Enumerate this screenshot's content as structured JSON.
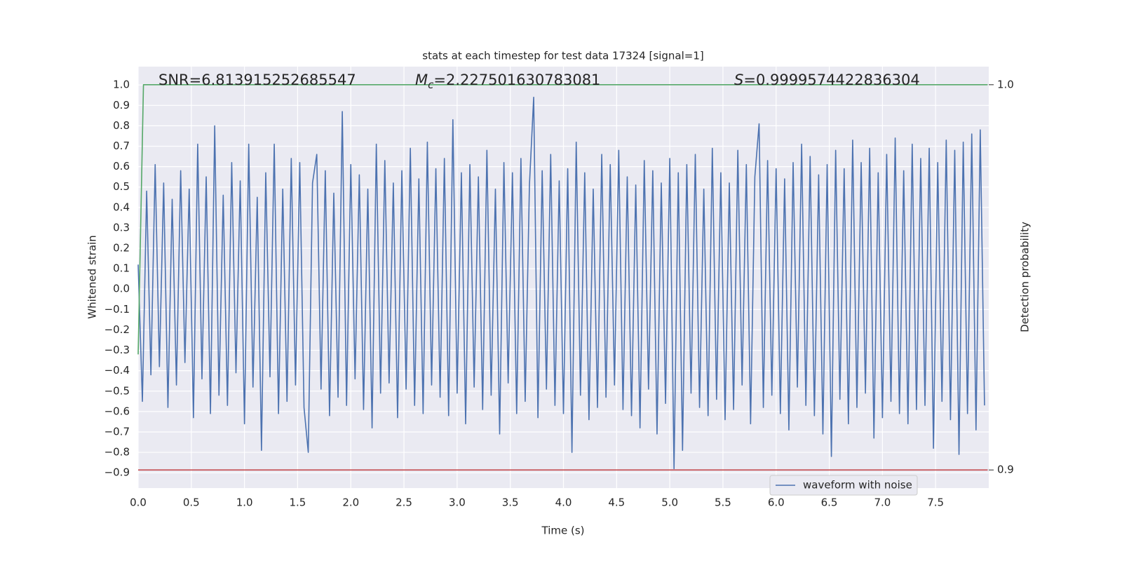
{
  "chart_data": {
    "type": "line",
    "title": "stats at each timestep for test data 17324 [signal=1]",
    "xlabel": "Time (s)",
    "ylabel": "Whitened strain",
    "y2label": "Detection probability",
    "annotations": [
      {
        "symbol": "SNR",
        "text": "=6.813915252685547"
      },
      {
        "symbol": "M",
        "subscript": "c",
        "text": "=2.227501630783081"
      },
      {
        "symbol": "S",
        "text": "=0.9999574422836304"
      }
    ],
    "xlim": [
      0,
      8.0
    ],
    "ylim": [
      -0.975,
      1.09
    ],
    "y2lim": [
      0.8953,
      1.0047
    ],
    "xticks": [
      {
        "value": 0,
        "label": "0.0"
      },
      {
        "value": 0.5,
        "label": "0.5"
      },
      {
        "value": 1,
        "label": "1.0"
      },
      {
        "value": 1.5,
        "label": "1.5"
      },
      {
        "value": 2,
        "label": "2.0"
      },
      {
        "value": 2.5,
        "label": "2.5"
      },
      {
        "value": 3,
        "label": "3.0"
      },
      {
        "value": 3.5,
        "label": "3.5"
      },
      {
        "value": 4,
        "label": "4.0"
      },
      {
        "value": 4.5,
        "label": "4.5"
      },
      {
        "value": 5,
        "label": "5.0"
      },
      {
        "value": 5.5,
        "label": "5.5"
      },
      {
        "value": 6,
        "label": "6.0"
      },
      {
        "value": 6.5,
        "label": "6.5"
      },
      {
        "value": 7,
        "label": "7.0"
      },
      {
        "value": 7.5,
        "label": "7.5"
      }
    ],
    "yticks": [
      {
        "value": -0.9,
        "label": "−0.9"
      },
      {
        "value": -0.8,
        "label": "−0.8"
      },
      {
        "value": -0.7,
        "label": "−0.7"
      },
      {
        "value": -0.6,
        "label": "−0.6"
      },
      {
        "value": -0.5,
        "label": "−0.5"
      },
      {
        "value": -0.4,
        "label": "−0.4"
      },
      {
        "value": -0.3,
        "label": "−0.3"
      },
      {
        "value": -0.2,
        "label": "−0.2"
      },
      {
        "value": -0.1,
        "label": "−0.1"
      },
      {
        "value": 0,
        "label": "0.0"
      },
      {
        "value": 0.1,
        "label": "0.1"
      },
      {
        "value": 0.2,
        "label": "0.2"
      },
      {
        "value": 0.3,
        "label": "0.3"
      },
      {
        "value": 0.4,
        "label": "0.4"
      },
      {
        "value": 0.5,
        "label": "0.5"
      },
      {
        "value": 0.6,
        "label": "0.6"
      },
      {
        "value": 0.7,
        "label": "0.7"
      },
      {
        "value": 0.8,
        "label": "0.8"
      },
      {
        "value": 0.9,
        "label": "0.9"
      },
      {
        "value": 1,
        "label": "1.0"
      }
    ],
    "y2ticks": [
      {
        "value": 0.9,
        "label": "0.9"
      },
      {
        "value": 1,
        "label": "1.0"
      }
    ],
    "grid": true,
    "legend": "lower right",
    "series": [
      {
        "name": "waveform with noise",
        "color": "#4c72b0",
        "axis": "y",
        "x": [
          0,
          0.04,
          0.08,
          0.12,
          0.16,
          0.2,
          0.24,
          0.28,
          0.32,
          0.36,
          0.4,
          0.44,
          0.48,
          0.52,
          0.56,
          0.6,
          0.64,
          0.68,
          0.72,
          0.76,
          0.8,
          0.84,
          0.88,
          0.92,
          0.96,
          1,
          1.04,
          1.08,
          1.12,
          1.16,
          1.2,
          1.24,
          1.28,
          1.32,
          1.36,
          1.4,
          1.44,
          1.48,
          1.52,
          1.56,
          1.6,
          1.64,
          1.68,
          1.72,
          1.76,
          1.8,
          1.84,
          1.88,
          1.92,
          1.96,
          2,
          2.04,
          2.08,
          2.12,
          2.16,
          2.2,
          2.24,
          2.28,
          2.32,
          2.36,
          2.4,
          2.44,
          2.48,
          2.52,
          2.56,
          2.6,
          2.64,
          2.68,
          2.72,
          2.76,
          2.8,
          2.84,
          2.88,
          2.92,
          2.96,
          3,
          3.04,
          3.08,
          3.12,
          3.16,
          3.2,
          3.24,
          3.28,
          3.32,
          3.36,
          3.4,
          3.44,
          3.48,
          3.52,
          3.56,
          3.6,
          3.64,
          3.68,
          3.72,
          3.76,
          3.8,
          3.84,
          3.88,
          3.92,
          3.96,
          4,
          4.04,
          4.08,
          4.12,
          4.16,
          4.2,
          4.24,
          4.28,
          4.32,
          4.36,
          4.4,
          4.44,
          4.48,
          4.52,
          4.56,
          4.6,
          4.64,
          4.68,
          4.72,
          4.76,
          4.8,
          4.84,
          4.88,
          4.92,
          4.96,
          5,
          5.04,
          5.08,
          5.12,
          5.16,
          5.2,
          5.24,
          5.28,
          5.32,
          5.36,
          5.4,
          5.44,
          5.48,
          5.52,
          5.56,
          5.6,
          5.64,
          5.68,
          5.72,
          5.76,
          5.8,
          5.84,
          5.88,
          5.92,
          5.96,
          6,
          6.04,
          6.08,
          6.12,
          6.16,
          6.2,
          6.24,
          6.28,
          6.32,
          6.36,
          6.4,
          6.44,
          6.48,
          6.52,
          6.56,
          6.6,
          6.64,
          6.68,
          6.72,
          6.76,
          6.8,
          6.84,
          6.88,
          6.92,
          6.96,
          7,
          7.04,
          7.08,
          7.12,
          7.16,
          7.2,
          7.24,
          7.28,
          7.32,
          7.36,
          7.4,
          7.44,
          7.48,
          7.52,
          7.56,
          7.6,
          7.64,
          7.68,
          7.72,
          7.76,
          7.8,
          7.84,
          7.88,
          7.92,
          7.96
        ],
        "values": [
          0.12,
          -0.55,
          0.48,
          -0.42,
          0.61,
          -0.38,
          0.52,
          -0.58,
          0.44,
          -0.47,
          0.58,
          -0.36,
          0.49,
          -0.63,
          0.71,
          -0.44,
          0.55,
          -0.61,
          0.8,
          -0.52,
          0.46,
          -0.57,
          0.62,
          -0.41,
          0.53,
          -0.66,
          0.71,
          -0.48,
          0.45,
          -0.79,
          0.57,
          -0.43,
          0.71,
          -0.61,
          0.49,
          -0.55,
          0.64,
          -0.47,
          0.62,
          -0.58,
          -0.8,
          0.52,
          0.66,
          -0.49,
          0.58,
          -0.62,
          0.47,
          -0.53,
          0.87,
          -0.57,
          0.61,
          -0.44,
          0.56,
          -0.59,
          0.49,
          -0.68,
          0.71,
          -0.51,
          0.63,
          -0.46,
          0.52,
          -0.63,
          0.58,
          -0.49,
          0.69,
          -0.57,
          0.54,
          -0.61,
          0.72,
          -0.47,
          0.59,
          -0.53,
          0.64,
          -0.62,
          0.83,
          -0.51,
          0.57,
          -0.66,
          0.61,
          -0.48,
          0.55,
          -0.59,
          0.68,
          -0.52,
          0.49,
          -0.71,
          0.62,
          -0.46,
          0.57,
          -0.61,
          0.64,
          -0.55,
          0.51,
          0.94,
          -0.63,
          0.58,
          -0.49,
          0.66,
          -0.57,
          0.53,
          -0.61,
          0.59,
          -0.8,
          0.72,
          -0.52,
          0.57,
          -0.64,
          0.49,
          -0.58,
          0.66,
          -0.53,
          0.61,
          -0.47,
          0.68,
          -0.59,
          0.55,
          -0.62,
          0.51,
          -0.68,
          0.63,
          -0.49,
          0.58,
          -0.71,
          0.52,
          -0.56,
          0.64,
          -0.88,
          0.57,
          -0.79,
          0.61,
          -0.51,
          0.66,
          -0.58,
          0.49,
          -0.62,
          0.69,
          -0.54,
          0.57,
          -0.64,
          0.52,
          -0.59,
          0.68,
          -0.47,
          0.61,
          -0.66,
          0.55,
          0.81,
          -0.58,
          0.63,
          -0.52,
          0.59,
          -0.61,
          0.54,
          -0.69,
          0.62,
          -0.48,
          0.71,
          -0.57,
          0.65,
          -0.62,
          0.56,
          -0.71,
          0.61,
          -0.82,
          0.68,
          -0.54,
          0.59,
          -0.66,
          0.73,
          -0.58,
          0.62,
          -0.51,
          0.69,
          -0.73,
          0.57,
          -0.63,
          0.66,
          -0.55,
          0.74,
          -0.61,
          0.58,
          -0.66,
          0.71,
          -0.59,
          0.64,
          -0.57,
          0.69,
          -0.78,
          0.62,
          -0.55,
          0.73,
          -0.64,
          0.68,
          -0.81,
          0.72,
          -0.61,
          0.76,
          -0.69,
          0.78,
          -0.57
        ]
      },
      {
        "color": "#55a868",
        "axis": "y2",
        "x": [
          0,
          0.05,
          0.1,
          7.99
        ],
        "values": [
          0.93,
          1.0,
          1.0,
          1.0
        ]
      },
      {
        "color": "#c44e52",
        "axis": "y2",
        "x": [
          0,
          7.99
        ],
        "values": [
          0.9,
          0.9
        ]
      }
    ]
  }
}
